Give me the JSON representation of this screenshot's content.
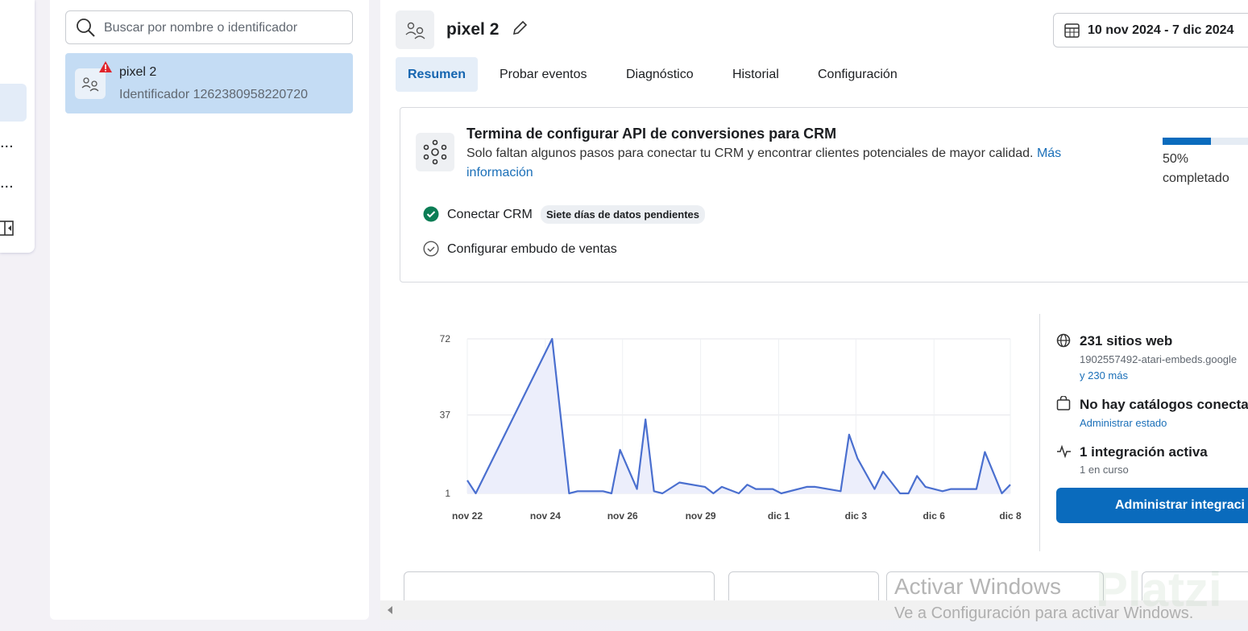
{
  "left_nav": {
    "items": [
      ".",
      "...",
      "..."
    ]
  },
  "sidebar": {
    "search_placeholder": "Buscar por nombre o identificador",
    "pixel_item": {
      "name": "pixel 2",
      "id_text": "Identificador 1262380958220720"
    }
  },
  "header": {
    "title": "pixel 2",
    "date_range": "10 nov 2024 - 7 dic 2024"
  },
  "tabs": [
    "Resumen",
    "Probar eventos",
    "Diagnóstico",
    "Historial",
    "Configuración"
  ],
  "setup_card": {
    "title": "Termina de configurar API de conversiones para CRM",
    "description": "Solo faltan algunos pasos para conectar tu CRM y encontrar clientes potenciales de mayor calidad.",
    "link": "Más información",
    "progress_value": 50,
    "progress_label": "50%",
    "progress_text": "completado",
    "steps": [
      {
        "label": "Conectar CRM",
        "badge": "Siete días de datos pendientes"
      },
      {
        "label": "Configurar embudo de ventas"
      }
    ]
  },
  "chart_data": {
    "type": "line",
    "x": [
      0,
      1,
      10,
      12,
      13,
      16,
      17,
      18,
      20,
      21,
      22,
      23,
      25,
      28,
      29,
      30,
      32,
      33,
      34,
      36,
      37,
      40,
      41,
      44,
      45,
      46,
      48,
      49,
      51,
      52,
      53,
      54,
      56,
      57,
      60,
      61,
      63,
      64
    ],
    "series": [
      {
        "name": "Eventos",
        "color": "#4a6fcf",
        "values": [
          7,
          1,
          72,
          1,
          2,
          2,
          1,
          21,
          3,
          35,
          2,
          1,
          6,
          4,
          1,
          4,
          1,
          5,
          3,
          3,
          1,
          4,
          4,
          2,
          28,
          17,
          3,
          11,
          1,
          1,
          9,
          4,
          2,
          3,
          3,
          20,
          1,
          5
        ]
      }
    ],
    "xlim": [
      0,
      64
    ],
    "xticks": [
      {
        "value": 0,
        "label": "nov 22"
      },
      {
        "value": 9.2,
        "label": "nov 24"
      },
      {
        "value": 18.3,
        "label": "nov 26"
      },
      {
        "value": 27.5,
        "label": "nov 29"
      },
      {
        "value": 36.7,
        "label": "dic 1"
      },
      {
        "value": 45.8,
        "label": "dic 3"
      },
      {
        "value": 55,
        "label": "dic 6"
      },
      {
        "value": 64,
        "label": "dic 8"
      }
    ],
    "ylim": [
      1,
      72
    ],
    "yticks": [
      1,
      37,
      72
    ],
    "grid": true,
    "area_color": "#eceefb"
  },
  "info": {
    "websites": "231 sitios web",
    "website_example": "1902557492-atari-embeds.google",
    "website_more": "y 230 más",
    "catalogs": "No hay catálogos conecta",
    "catalogs_link": "Administrar estado",
    "integrations": "1 integración activa",
    "integrations_sub": "1 en curso",
    "button": "Administrar integraci"
  },
  "watermark": {
    "title": "Activar Windows",
    "subtitle": "Ve a Configuración para activar Windows.",
    "logo": "Platzi"
  }
}
